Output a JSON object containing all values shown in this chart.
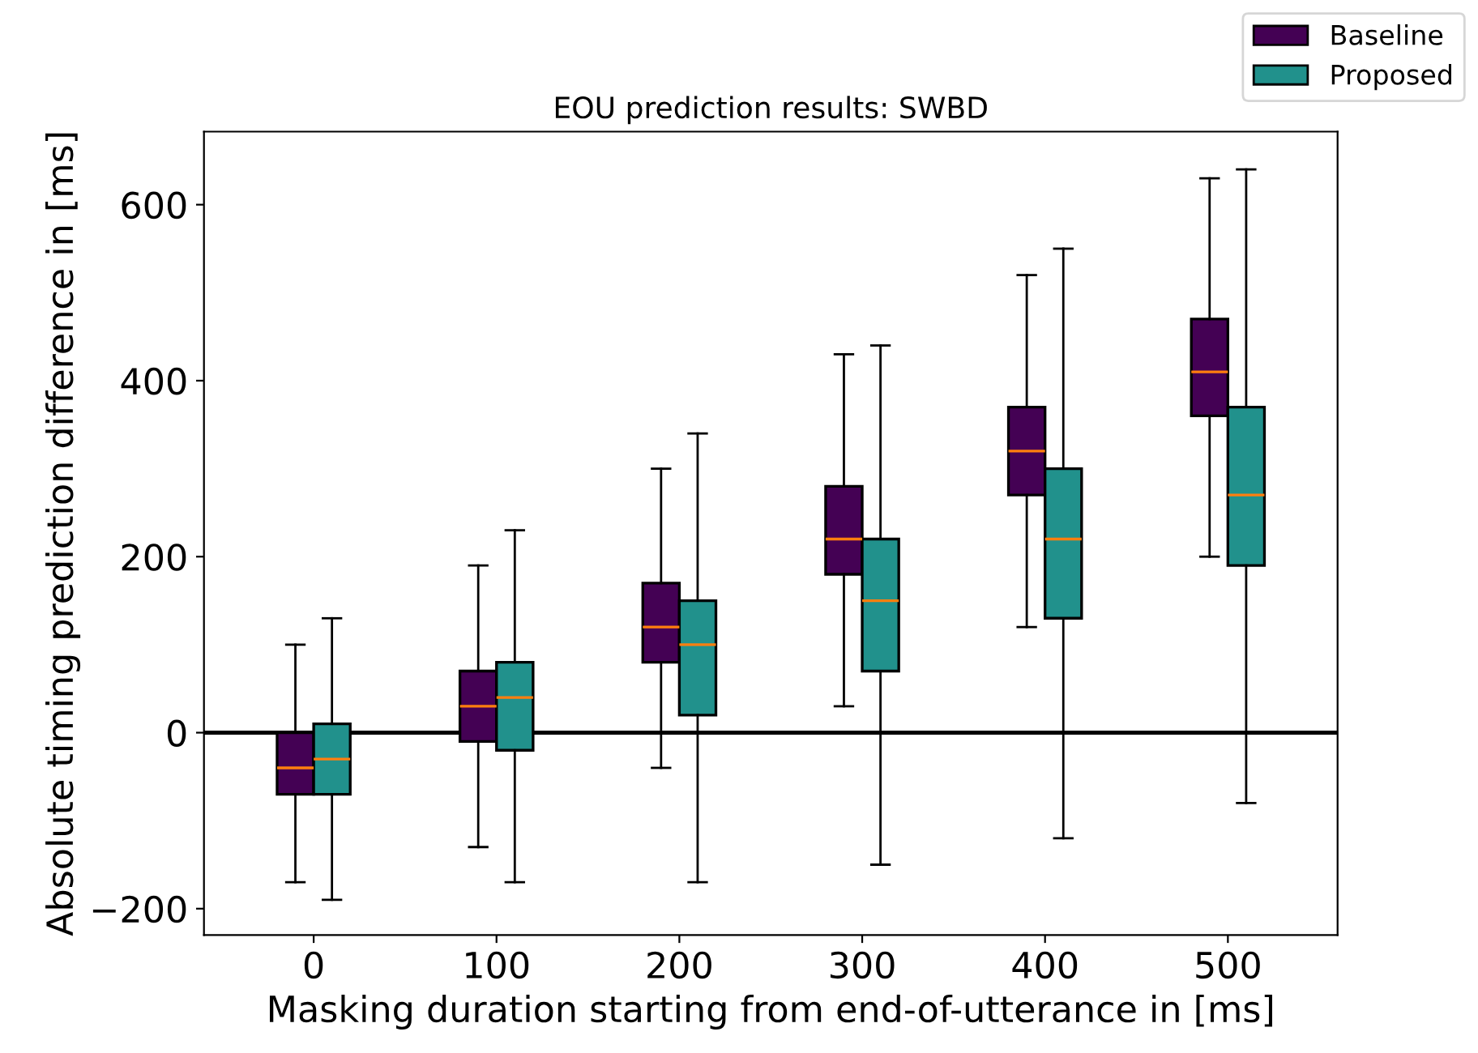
{
  "chart_data": {
    "type": "box",
    "title": "EOU prediction results: SWBD",
    "xlabel": "Masking duration starting from end-of-utterance in [ms]",
    "ylabel": "Absolute timing prediction difference in [ms]",
    "categories": [
      "0",
      "100",
      "200",
      "300",
      "400",
      "500"
    ],
    "series": [
      {
        "name": "Baseline",
        "color": "#440154",
        "boxes": [
          {
            "low": -170,
            "q1": -70,
            "median": -40,
            "q3": 0,
            "high": 100
          },
          {
            "low": -130,
            "q1": -10,
            "median": 30,
            "q3": 70,
            "high": 190
          },
          {
            "low": -40,
            "q1": 80,
            "median": 120,
            "q3": 170,
            "high": 300
          },
          {
            "low": 30,
            "q1": 180,
            "median": 220,
            "q3": 280,
            "high": 430
          },
          {
            "low": 120,
            "q1": 270,
            "median": 320,
            "q3": 370,
            "high": 520
          },
          {
            "low": 200,
            "q1": 360,
            "median": 410,
            "q3": 470,
            "high": 630
          }
        ]
      },
      {
        "name": "Proposed",
        "color": "#21918c",
        "boxes": [
          {
            "low": -190,
            "q1": -70,
            "median": -30,
            "q3": 10,
            "high": 130
          },
          {
            "low": -170,
            "q1": -20,
            "median": 40,
            "q3": 80,
            "high": 230
          },
          {
            "low": -170,
            "q1": 20,
            "median": 100,
            "q3": 150,
            "high": 340
          },
          {
            "low": -150,
            "q1": 70,
            "median": 150,
            "q3": 220,
            "high": 440
          },
          {
            "low": -120,
            "q1": 130,
            "median": 220,
            "q3": 300,
            "high": 550
          },
          {
            "low": -80,
            "q1": 190,
            "median": 270,
            "q3": 370,
            "high": 640
          }
        ]
      }
    ],
    "ylim": [
      -230,
      683
    ],
    "yticks": [
      -200,
      0,
      200,
      400,
      600
    ],
    "ref_lines": [
      {
        "axis": "y",
        "value": 0,
        "color": "#000000",
        "line_style": "solid"
      }
    ],
    "grid": false,
    "legend": "top right"
  }
}
